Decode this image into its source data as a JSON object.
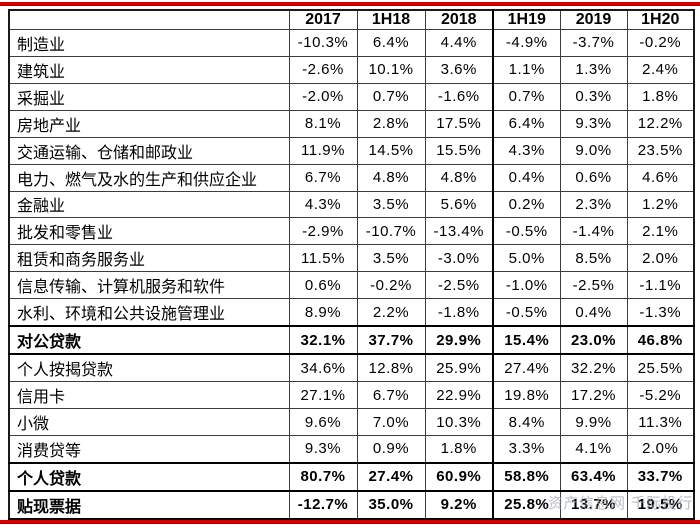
{
  "page": {
    "background": "#ffffff",
    "accent_red": "#d40000",
    "watermark": "资产信息网 千际投行"
  },
  "chart_data": {
    "type": "table",
    "title": "",
    "corner_label": "",
    "columns": [
      "2017",
      "1H18",
      "2018",
      "1H19",
      "2019",
      "1H20"
    ],
    "value_unit": "percent",
    "layout_hints": {
      "thick_divider_after_column": "2018",
      "emphasis_rows_have_thick_borders": true
    },
    "rows": [
      {
        "label": "制造业",
        "values": [
          "-10.3%",
          "6.4%",
          "4.4%",
          "-4.9%",
          "-3.7%",
          "-0.2%"
        ],
        "emphasis": false
      },
      {
        "label": "建筑业",
        "values": [
          "-2.6%",
          "10.1%",
          "3.6%",
          "1.1%",
          "1.3%",
          "2.4%"
        ],
        "emphasis": false
      },
      {
        "label": "采掘业",
        "values": [
          "-2.0%",
          "0.7%",
          "-1.6%",
          "0.7%",
          "0.3%",
          "1.8%"
        ],
        "emphasis": false
      },
      {
        "label": "房地产业",
        "values": [
          "8.1%",
          "2.8%",
          "17.5%",
          "6.4%",
          "9.3%",
          "12.2%"
        ],
        "emphasis": false
      },
      {
        "label": "交通运输、仓储和邮政业",
        "values": [
          "11.9%",
          "14.5%",
          "15.5%",
          "4.3%",
          "9.0%",
          "23.5%"
        ],
        "emphasis": false
      },
      {
        "label": "电力、燃气及水的生产和供应企业",
        "values": [
          "6.7%",
          "4.8%",
          "4.8%",
          "0.4%",
          "0.6%",
          "4.6%"
        ],
        "emphasis": false
      },
      {
        "label": "金融业",
        "values": [
          "4.3%",
          "3.5%",
          "5.6%",
          "0.2%",
          "2.3%",
          "1.2%"
        ],
        "emphasis": false
      },
      {
        "label": "批发和零售业",
        "values": [
          "-2.9%",
          "-10.7%",
          "-13.4%",
          "-0.5%",
          "-1.4%",
          "2.1%"
        ],
        "emphasis": false
      },
      {
        "label": "租赁和商务服务业",
        "values": [
          "11.5%",
          "3.5%",
          "-3.0%",
          "5.0%",
          "8.5%",
          "2.0%"
        ],
        "emphasis": false
      },
      {
        "label": "信息传输、计算机服务和软件",
        "values": [
          "0.6%",
          "-0.2%",
          "-2.5%",
          "-1.0%",
          "-2.5%",
          "-1.1%"
        ],
        "emphasis": false
      },
      {
        "label": "水利、环境和公共设施管理业",
        "values": [
          "8.9%",
          "2.2%",
          "-1.8%",
          "-0.5%",
          "0.4%",
          "-1.3%"
        ],
        "emphasis": false
      },
      {
        "label": "对公贷款",
        "values": [
          "32.1%",
          "37.7%",
          "29.9%",
          "15.4%",
          "23.0%",
          "46.8%"
        ],
        "emphasis": true
      },
      {
        "label": "个人按揭贷款",
        "values": [
          "34.6%",
          "12.8%",
          "25.9%",
          "27.4%",
          "32.2%",
          "25.5%"
        ],
        "emphasis": false
      },
      {
        "label": "信用卡",
        "values": [
          "27.1%",
          "6.7%",
          "22.9%",
          "19.8%",
          "17.2%",
          "-5.2%"
        ],
        "emphasis": false
      },
      {
        "label": "小微",
        "values": [
          "9.6%",
          "7.0%",
          "10.3%",
          "8.4%",
          "9.9%",
          "11.3%"
        ],
        "emphasis": false
      },
      {
        "label": "消费贷等",
        "values": [
          "9.3%",
          "0.9%",
          "1.8%",
          "3.3%",
          "4.1%",
          "2.0%"
        ],
        "emphasis": false
      },
      {
        "label": "个人贷款",
        "values": [
          "80.7%",
          "27.4%",
          "60.9%",
          "58.8%",
          "63.4%",
          "33.7%"
        ],
        "emphasis": true
      },
      {
        "label": "贴现票据",
        "values": [
          "-12.7%",
          "35.0%",
          "9.2%",
          "25.8%",
          "13.7%",
          "19.5%"
        ],
        "emphasis": true
      }
    ]
  }
}
